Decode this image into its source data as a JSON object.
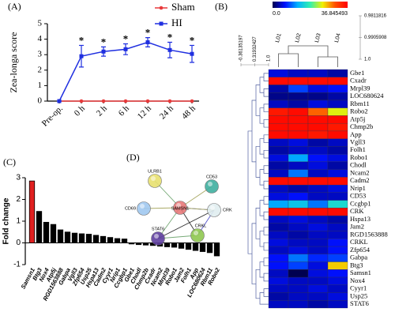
{
  "chart_data": [
    {
      "type": "line",
      "panel_label": "(A)",
      "ylabel": "Zea-longa score",
      "categories": [
        "Pre-op.",
        "0 h",
        "2 h",
        "6 h",
        "12 h",
        "24 h",
        "48 h"
      ],
      "series": [
        {
          "name": "Sham",
          "color": "#e8393a",
          "values": [
            0,
            0,
            0,
            0,
            0,
            0,
            0
          ]
        },
        {
          "name": "HI",
          "color": "#1f2fe0",
          "values": [
            0,
            2.9,
            3.2,
            3.35,
            3.8,
            3.3,
            3.05
          ],
          "errors": [
            0,
            0.7,
            0.3,
            0.35,
            0.3,
            0.5,
            0.55
          ]
        }
      ],
      "significance": [
        null,
        "*",
        "*",
        "*",
        "*",
        "*",
        "*"
      ],
      "ylim": [
        0,
        5
      ],
      "yticks": [
        0,
        1,
        2,
        3,
        4,
        5
      ]
    },
    {
      "type": "heatmap",
      "panel_label": "(B)",
      "columns": [
        "L01",
        "L02",
        "L03",
        "L04"
      ],
      "rows": [
        "Gbe1",
        "Cxadr",
        "Mrpl39",
        "LOC680624",
        "Rbm11",
        "Robo2",
        "Atp5j",
        "Chmp2b",
        "App",
        "Vgll3",
        "Folh1",
        "Robo1",
        "Chodl",
        "Ncam2",
        "Cadm2",
        "Nrip1",
        "CD53",
        "Ccgbp1",
        "CRK",
        "Hspa13",
        "Jam2",
        "RGD1563888",
        "CRKL",
        "Zfp654",
        "Gabpa",
        "Btg3",
        "Samsn1",
        "Nox4",
        "Cyyr1",
        "Usp25",
        "STAT6"
      ],
      "values": [
        [
          5,
          4,
          4,
          3
        ],
        [
          36,
          36,
          36,
          36
        ],
        [
          3,
          8,
          5,
          6
        ],
        [
          2,
          2,
          2,
          3
        ],
        [
          4,
          3,
          5,
          4
        ],
        [
          35,
          36,
          30,
          24
        ],
        [
          36,
          36,
          36,
          36
        ],
        [
          36,
          36,
          36,
          35
        ],
        [
          36,
          36,
          35,
          36
        ],
        [
          4,
          5,
          3,
          4
        ],
        [
          3,
          4,
          4,
          3
        ],
        [
          5,
          12,
          6,
          5
        ],
        [
          3,
          4,
          5,
          3
        ],
        [
          4,
          10,
          4,
          5
        ],
        [
          36,
          36,
          36,
          36
        ],
        [
          4,
          3,
          4,
          5
        ],
        [
          5,
          6,
          4,
          4
        ],
        [
          12,
          14,
          10,
          16
        ],
        [
          36,
          36,
          36,
          36
        ],
        [
          4,
          5,
          4,
          3
        ],
        [
          3,
          4,
          5,
          4
        ],
        [
          4,
          3,
          4,
          4
        ],
        [
          5,
          4,
          4,
          6
        ],
        [
          4,
          5,
          4,
          6
        ],
        [
          6,
          10,
          7,
          8
        ],
        [
          6,
          8,
          5,
          26
        ],
        [
          4,
          0,
          5,
          6
        ],
        [
          5,
          4,
          4,
          5
        ],
        [
          4,
          4,
          5,
          4
        ],
        [
          3,
          4,
          4,
          5
        ],
        [
          4,
          4,
          3,
          4
        ]
      ],
      "clim": [
        0,
        36.845493
      ],
      "colorbar_ticks": [
        {
          "value": 0,
          "label": "0.0"
        },
        36.845493
      ],
      "colors": [
        "#000050",
        "#0010ff",
        "#00b0ff",
        "#30f0b0",
        "#f0f000",
        "#ff5000",
        "#ff0000"
      ],
      "row_dendrogram_lim": [
        -0.36135197,
        1
      ],
      "row_dendrogram_ticks": [
        -0.36135197,
        0.31932427,
        {
          "value": 1,
          "label": "1.0"
        }
      ],
      "col_dendrogram_lim": [
        0.9811816,
        1
      ],
      "col_dendrogram_ticks": [
        0.9811816,
        0.9905908,
        {
          "value": 1,
          "label": "1.0"
        }
      ]
    },
    {
      "type": "bar",
      "panel_label": "(C)",
      "ylabel": "Fold change",
      "categories": [
        "Samsn1",
        "Btg3",
        "Nox4",
        "Atp5j",
        "RGD1563888",
        "Gabpa",
        "Vgll3",
        "Zfp654",
        "Usp25",
        "Hspa13",
        "Cadm2",
        "Cyyr1",
        "Nrip1",
        "Ccgbp1",
        "Gbe1",
        "Chodl",
        "Chmp2b",
        "Cxadr",
        "Ncam2",
        "Mrpl39",
        "Robo1",
        "Jam2",
        "Folh1",
        "App",
        "LOC680624",
        "Rbm11",
        "Robo2"
      ],
      "values": [
        2.85,
        1.45,
        0.95,
        0.85,
        0.6,
        0.5,
        0.45,
        0.42,
        0.4,
        0.35,
        0.3,
        0.25,
        0.2,
        0.18,
        -0.05,
        -0.08,
        -0.1,
        -0.12,
        -0.15,
        -0.18,
        -0.2,
        -0.25,
        -0.3,
        -0.35,
        -0.4,
        -0.45,
        -0.6
      ],
      "colors": [
        "#e02020",
        "#000000"
      ],
      "ylim": [
        -1,
        3
      ],
      "yticks": [
        -1,
        0,
        1,
        2,
        3
      ]
    },
    {
      "type": "network",
      "panel_label": "(D)",
      "nodes": [
        {
          "label": "SAMSN1",
          "color": "#e87a7a"
        },
        {
          "label": "ULRB1",
          "color": "#e8e070"
        },
        {
          "label": "CD53",
          "color": "#40b0a0"
        },
        {
          "label": "CRK",
          "color": "#e0eef0"
        },
        {
          "label": "CRKL",
          "color": "#90c850"
        },
        {
          "label": "STAT6",
          "color": "#6040a0"
        },
        {
          "label": "CD69",
          "color": "#a0c8f0"
        }
      ]
    }
  ]
}
